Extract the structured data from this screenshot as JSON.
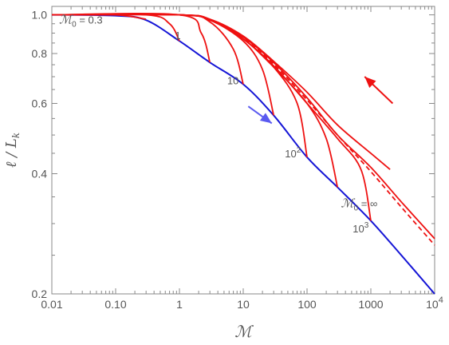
{
  "chart_data": {
    "type": "line",
    "xlabel": "ℳ",
    "ylabel": "ℓ / L",
    "ylabel_sub": "k",
    "x_scale": "log",
    "y_scale": "log",
    "xlim": [
      0.01,
      10000
    ],
    "ylim": [
      0.2,
      1.05
    ],
    "x_ticks": [
      {
        "value": 0.01,
        "label": "0.01"
      },
      {
        "value": 0.1,
        "label": "0.10"
      },
      {
        "value": 1,
        "label": "1"
      },
      {
        "value": 10,
        "label": "10"
      },
      {
        "value": 100,
        "label": "100"
      },
      {
        "value": 1000,
        "label": "1000"
      },
      {
        "value": 10000,
        "label": "10",
        "sup": "4"
      }
    ],
    "y_ticks": [
      {
        "value": 0.2,
        "label": "0.2"
      },
      {
        "value": 0.4,
        "label": "0.4"
      },
      {
        "value": 0.6,
        "label": "0.6"
      },
      {
        "value": 0.8,
        "label": "0.8"
      },
      {
        "value": 1.0,
        "label": "1.0"
      }
    ],
    "grid": false,
    "colors": {
      "blue": "#1515d6",
      "red": "#ee1111",
      "arrow_blue": "#5a5af0",
      "axis": "#888888",
      "text": "#555555"
    },
    "series": [
      {
        "color": "#1515d6",
        "style": "solid",
        "x": [
          0.01,
          0.1,
          0.3,
          1,
          3,
          10,
          30,
          100,
          300,
          1000,
          3000,
          10000
        ],
        "y": [
          1.0,
          0.995,
          0.97,
          0.86,
          0.76,
          0.67,
          0.56,
          0.44,
          0.37,
          0.305,
          0.25,
          0.2
        ]
      },
      {
        "color": "#ee1111",
        "style": "solid",
        "x": [
          0.01,
          0.1,
          0.3
        ],
        "y": [
          1.0,
          1.0,
          0.975
        ]
      },
      {
        "color": "#ee1111",
        "style": "solid",
        "x": [
          0.01,
          0.3,
          0.7,
          1
        ],
        "y": [
          1.0,
          1.0,
          0.95,
          0.86
        ]
      },
      {
        "color": "#ee1111",
        "style": "solid",
        "x": [
          0.01,
          1,
          2.2,
          3
        ],
        "y": [
          1.0,
          1.0,
          0.9,
          0.76
        ]
      },
      {
        "color": "#ee1111",
        "style": "solid",
        "x": [
          0.01,
          1,
          3,
          7,
          10
        ],
        "y": [
          1.0,
          1.0,
          0.96,
          0.82,
          0.67
        ]
      },
      {
        "color": "#ee1111",
        "style": "solid",
        "x": [
          0.01,
          1,
          3,
          10,
          20,
          30
        ],
        "y": [
          1.0,
          1.0,
          0.97,
          0.86,
          0.73,
          0.56
        ]
      },
      {
        "color": "#ee1111",
        "style": "solid",
        "x": [
          0.01,
          1,
          3,
          10,
          30,
          70,
          100
        ],
        "y": [
          1.0,
          1.0,
          0.97,
          0.87,
          0.74,
          0.6,
          0.44
        ]
      },
      {
        "color": "#ee1111",
        "style": "solid",
        "x": [
          0.01,
          1,
          3,
          10,
          30,
          100,
          200,
          300
        ],
        "y": [
          1.0,
          1.0,
          0.97,
          0.87,
          0.74,
          0.6,
          0.49,
          0.37
        ]
      },
      {
        "color": "#ee1111",
        "style": "solid",
        "x": [
          0.01,
          1,
          3,
          10,
          30,
          100,
          300,
          700,
          1000
        ],
        "y": [
          1.0,
          1.0,
          0.97,
          0.87,
          0.745,
          0.6,
          0.49,
          0.41,
          0.305
        ]
      },
      {
        "color": "#ee1111",
        "style": "solid",
        "x": [
          0.01,
          1,
          3,
          10,
          30,
          100,
          300,
          1000,
          3000,
          10000
        ],
        "y": [
          1.0,
          1.0,
          0.975,
          0.88,
          0.76,
          0.62,
          0.5,
          0.415,
          0.34,
          0.275
        ]
      },
      {
        "color": "#ee1111",
        "style": "solid",
        "x": [
          0.01,
          1,
          3,
          10,
          30,
          100,
          300,
          1000,
          2000
        ],
        "y": [
          1.0,
          1.0,
          0.975,
          0.885,
          0.765,
          0.64,
          0.53,
          0.45,
          0.41
        ]
      },
      {
        "color": "#ee1111",
        "style": "dashed",
        "x": [
          0.01,
          1,
          3,
          10,
          30,
          100,
          300,
          1000,
          3000,
          10000
        ],
        "y": [
          1.0,
          1.0,
          0.972,
          0.875,
          0.752,
          0.612,
          0.5,
          0.405,
          0.33,
          0.265
        ]
      }
    ],
    "annotations": [
      {
        "text": "ℳ",
        "sub": "0",
        "tail": " = 0.3",
        "x": 0.013,
        "y": 0.95
      },
      {
        "text": "1",
        "x": 0.85,
        "y": 0.87
      },
      {
        "text": "10",
        "x": 5.6,
        "y": 0.67
      },
      {
        "text": "10",
        "sup": "2",
        "x": 45,
        "y": 0.44
      },
      {
        "text": "10",
        "sup": "3",
        "x": 520,
        "y": 0.285
      },
      {
        "text": "ℳ",
        "sub": "0",
        "tail": " = ∞",
        "x": 340,
        "y": 0.33
      }
    ],
    "arrows": [
      {
        "color": "#ee1111",
        "x_from": 2200,
        "y_from": 0.6,
        "x_to": 800,
        "y_to": 0.7
      },
      {
        "color": "#5a5af0",
        "x_from": 12,
        "y_from": 0.59,
        "x_to": 28,
        "y_to": 0.535
      }
    ]
  }
}
